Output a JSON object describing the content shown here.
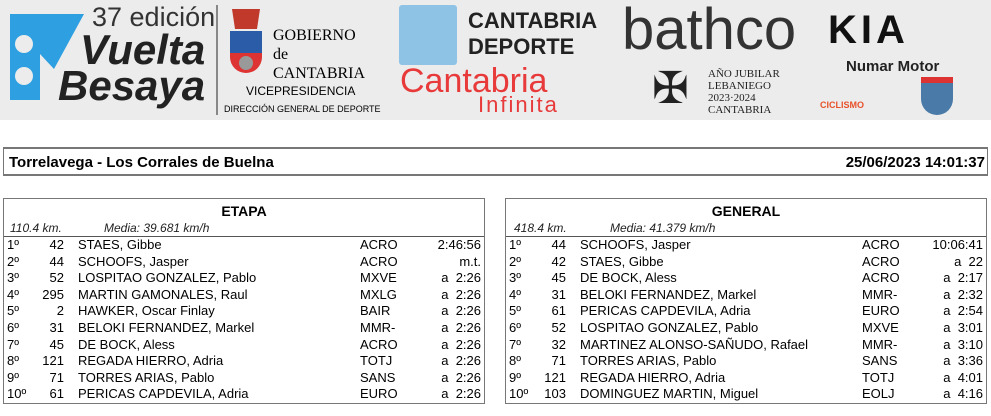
{
  "banner": {
    "vuelta": {
      "edition": "37 edición",
      "line1": "Vuelta",
      "line2": "Besaya",
      "color": "#2e9fe0"
    },
    "gobierno": {
      "line1": "GOBIERNO",
      "line2": "de",
      "line3": "CANTABRIA",
      "vice": "VICEPRESIDENCIA",
      "direccion": "DIRECCIÓN GENERAL DE DEPORTE"
    },
    "cantabria_deporte": {
      "line1": "CANTABRIA",
      "line2": "DEPORTE"
    },
    "cantabria_infinita": {
      "line1": "Cantabria",
      "line2": "Infinita",
      "color": "#e83a3a"
    },
    "bathco": "bathco",
    "jubilar": {
      "line1": "AÑO JUBILAR",
      "line2": "LEBANIEGO",
      "line3": "2023·2024",
      "line4": "CANTABRIA"
    },
    "kia": "KIA",
    "numar": "Numar Motor",
    "ciclismo": "CICLISMO"
  },
  "title": {
    "route": "Torrelavega - Los Corrales de Buelna",
    "datetime": "25/06/2023 14:01:37"
  },
  "etapa": {
    "title": "ETAPA",
    "distance": "110.4 km.",
    "average": "Media: 39.681 km/h",
    "rows": [
      {
        "pos": "1º",
        "num": "42",
        "name": "STAES, Gibbe",
        "team": "ACRO",
        "time": "2:46:56"
      },
      {
        "pos": "2º",
        "num": "44",
        "name": "SCHOOFS, Jasper",
        "team": "ACRO",
        "time": "m.t."
      },
      {
        "pos": "3º",
        "num": "52",
        "name": "LOSPITAO GONZALEZ, Pablo",
        "team": "MXVE",
        "time": "a  2:26"
      },
      {
        "pos": "4º",
        "num": "295",
        "name": "MARTIN GAMONALES, Raul",
        "team": "MXLG",
        "time": "a  2:26"
      },
      {
        "pos": "5º",
        "num": "2",
        "name": "HAWKER, Oscar Finlay",
        "team": "BAIR",
        "time": "a  2:26"
      },
      {
        "pos": "6º",
        "num": "31",
        "name": "BELOKI FERNANDEZ, Markel",
        "team": "MMR-",
        "time": "a  2:26"
      },
      {
        "pos": "7º",
        "num": "45",
        "name": "DE BOCK, Aless",
        "team": "ACRO",
        "time": "a  2:26"
      },
      {
        "pos": "8º",
        "num": "121",
        "name": "REGADA HIERRO, Adria",
        "team": "TOTJ",
        "time": "a  2:26"
      },
      {
        "pos": "9º",
        "num": "71",
        "name": "TORRES ARIAS, Pablo",
        "team": "SANS",
        "time": "a  2:26"
      },
      {
        "pos": "10º",
        "num": "61",
        "name": "PERICAS CAPDEVILA, Adria",
        "team": "EURO",
        "time": "a  2:26"
      }
    ]
  },
  "general": {
    "title": "GENERAL",
    "distance": "418.4 km.",
    "average": "Media: 41.379 km/h",
    "rows": [
      {
        "pos": "1º",
        "num": "44",
        "name": "SCHOOFS, Jasper",
        "team": "ACRO",
        "time": "10:06:41"
      },
      {
        "pos": "2º",
        "num": "42",
        "name": "STAES, Gibbe",
        "team": "ACRO",
        "time": "a  22"
      },
      {
        "pos": "3º",
        "num": "45",
        "name": "DE BOCK, Aless",
        "team": "ACRO",
        "time": "a  2:17"
      },
      {
        "pos": "4º",
        "num": "31",
        "name": "BELOKI FERNANDEZ, Markel",
        "team": "MMR-",
        "time": "a  2:32"
      },
      {
        "pos": "5º",
        "num": "61",
        "name": "PERICAS CAPDEVILA, Adria",
        "team": "EURO",
        "time": "a  2:54"
      },
      {
        "pos": "6º",
        "num": "52",
        "name": "LOSPITAO GONZALEZ, Pablo",
        "team": "MXVE",
        "time": "a  3:01"
      },
      {
        "pos": "7º",
        "num": "32",
        "name": "MARTINEZ ALONSO-SAÑUDO, Rafael",
        "team": "MMR-",
        "time": "a  3:10"
      },
      {
        "pos": "8º",
        "num": "71",
        "name": "TORRES ARIAS, Pablo",
        "team": "SANS",
        "time": "a  3:36"
      },
      {
        "pos": "9º",
        "num": "121",
        "name": "REGADA HIERRO, Adria",
        "team": "TOTJ",
        "time": "a  4:01"
      },
      {
        "pos": "10º",
        "num": "103",
        "name": "DOMINGUEZ MARTIN, Miguel",
        "team": "EOLJ",
        "time": "a  4:16"
      }
    ]
  }
}
